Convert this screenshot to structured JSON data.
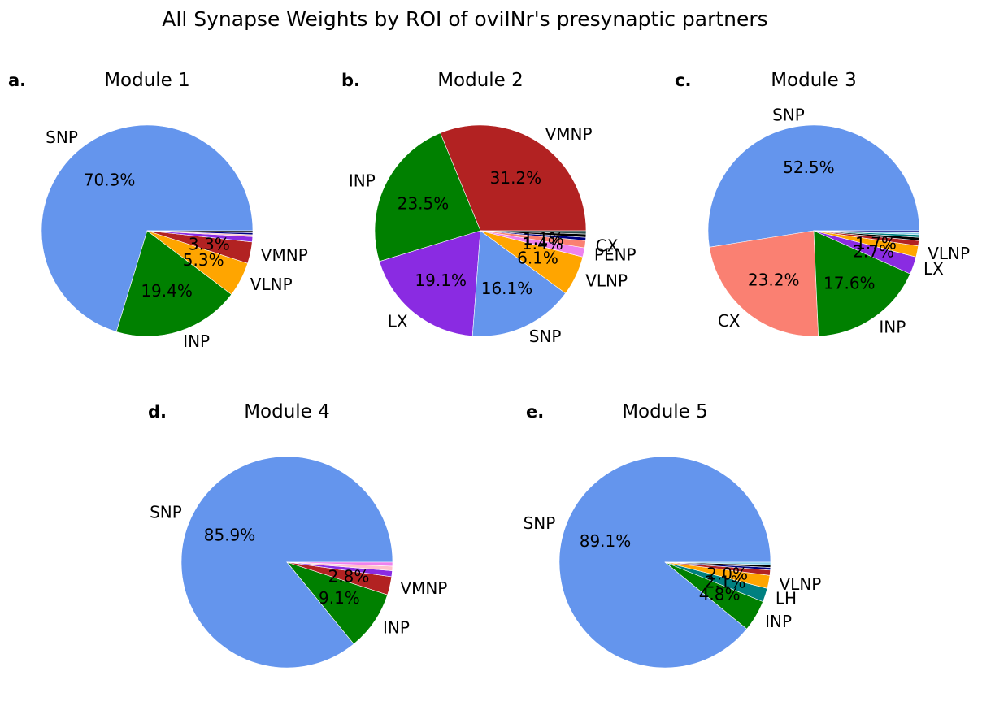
{
  "figure": {
    "title": "All Synapse Weights by ROI of oviINr's presynaptic partners"
  },
  "colors": {
    "SNP": "#6495ED",
    "INP": "#008000",
    "VLNP": "#FFA500",
    "VMNP": "#B22222",
    "LX": "#8A2BE2",
    "CX": "#FA8072",
    "PENP": "#EE82EE",
    "LH": "#008080",
    "AL": "#FFC0CB",
    "GNG": "#000080",
    "MB": "#2F4F4F",
    "OL": "#000000",
    "other": "#87CEEB"
  },
  "chart_data": [
    {
      "type": "pie",
      "panel_label": "a.",
      "title": "Module 1",
      "slices": [
        {
          "label": "SNP",
          "value": 70.3,
          "show_label": true,
          "pct_text": "70.3%"
        },
        {
          "label": "INP",
          "value": 19.4,
          "show_label": true,
          "pct_text": "19.4%"
        },
        {
          "label": "VLNP",
          "value": 5.3,
          "show_label": true,
          "pct_text": "5.3%"
        },
        {
          "label": "VMNP",
          "value": 3.3,
          "show_label": true,
          "pct_text": "3.3%"
        },
        {
          "label": "LX",
          "value": 0.8,
          "show_label": false,
          "pct_text": ""
        },
        {
          "label": "AL",
          "value": 0.3,
          "show_label": false,
          "pct_text": ""
        },
        {
          "label": "GNG",
          "value": 0.3,
          "show_label": false,
          "pct_text": ""
        },
        {
          "label": "OL",
          "value": 0.3,
          "show_label": false,
          "pct_text": ""
        }
      ]
    },
    {
      "type": "pie",
      "panel_label": "b.",
      "title": "Module 2",
      "slices": [
        {
          "label": "VMNP",
          "value": 31.2,
          "show_label": true,
          "pct_text": "31.2%"
        },
        {
          "label": "INP",
          "value": 23.5,
          "show_label": true,
          "pct_text": "23.5%"
        },
        {
          "label": "LX",
          "value": 19.1,
          "show_label": true,
          "pct_text": "19.1%"
        },
        {
          "label": "SNP",
          "value": 16.1,
          "show_label": true,
          "pct_text": "16.1%"
        },
        {
          "label": "VLNP",
          "value": 6.1,
          "show_label": true,
          "pct_text": "6.1%"
        },
        {
          "label": "PENP",
          "value": 1.4,
          "show_label": true,
          "pct_text": "1.4%"
        },
        {
          "label": "CX",
          "value": 1.1,
          "show_label": true,
          "pct_text": "1.1%"
        },
        {
          "label": "GNG",
          "value": 0.5,
          "show_label": false,
          "pct_text": ""
        },
        {
          "label": "OL",
          "value": 0.5,
          "show_label": false,
          "pct_text": ""
        },
        {
          "label": "MB",
          "value": 0.5,
          "show_label": false,
          "pct_text": ""
        }
      ]
    },
    {
      "type": "pie",
      "panel_label": "c.",
      "title": "Module 3",
      "slices": [
        {
          "label": "SNP",
          "value": 52.5,
          "show_label": true,
          "pct_text": "52.5%"
        },
        {
          "label": "CX",
          "value": 23.2,
          "show_label": true,
          "pct_text": "23.2%"
        },
        {
          "label": "INP",
          "value": 17.6,
          "show_label": true,
          "pct_text": "17.6%"
        },
        {
          "label": "LX",
          "value": 2.7,
          "show_label": true,
          "pct_text": "2.7%"
        },
        {
          "label": "VLNP",
          "value": 1.7,
          "show_label": true,
          "pct_text": "1.7%"
        },
        {
          "label": "VMNP",
          "value": 0.8,
          "show_label": false,
          "pct_text": ""
        },
        {
          "label": "OL",
          "value": 0.5,
          "show_label": false,
          "pct_text": ""
        },
        {
          "label": "LH",
          "value": 0.4,
          "show_label": false,
          "pct_text": ""
        },
        {
          "label": "other",
          "value": 0.3,
          "show_label": false,
          "pct_text": ""
        },
        {
          "label": "GNG",
          "value": 0.3,
          "show_label": false,
          "pct_text": ""
        }
      ]
    },
    {
      "type": "pie",
      "panel_label": "d.",
      "title": "Module 4",
      "slices": [
        {
          "label": "SNP",
          "value": 85.9,
          "show_label": true,
          "pct_text": "85.9%"
        },
        {
          "label": "INP",
          "value": 9.1,
          "show_label": true,
          "pct_text": "9.1%"
        },
        {
          "label": "VMNP",
          "value": 2.8,
          "show_label": true,
          "pct_text": "2.8%"
        },
        {
          "label": "LX",
          "value": 0.9,
          "show_label": false,
          "pct_text": ""
        },
        {
          "label": "AL",
          "value": 0.7,
          "show_label": false,
          "pct_text": ""
        },
        {
          "label": "PENP",
          "value": 0.6,
          "show_label": false,
          "pct_text": ""
        }
      ]
    },
    {
      "type": "pie",
      "panel_label": "e.",
      "title": "Module 5",
      "slices": [
        {
          "label": "SNP",
          "value": 89.1,
          "show_label": true,
          "pct_text": "89.1%"
        },
        {
          "label": "INP",
          "value": 4.8,
          "show_label": true,
          "pct_text": "4.8%"
        },
        {
          "label": "LH",
          "value": 2.1,
          "show_label": true,
          "pct_text": "2.1%"
        },
        {
          "label": "VLNP",
          "value": 2.0,
          "show_label": true,
          "pct_text": "2.0%"
        },
        {
          "label": "VMNP",
          "value": 0.8,
          "show_label": false,
          "pct_text": ""
        },
        {
          "label": "GNG",
          "value": 0.4,
          "show_label": false,
          "pct_text": ""
        },
        {
          "label": "OL",
          "value": 0.4,
          "show_label": false,
          "pct_text": ""
        },
        {
          "label": "other",
          "value": 0.4,
          "show_label": false,
          "pct_text": ""
        }
      ]
    }
  ]
}
